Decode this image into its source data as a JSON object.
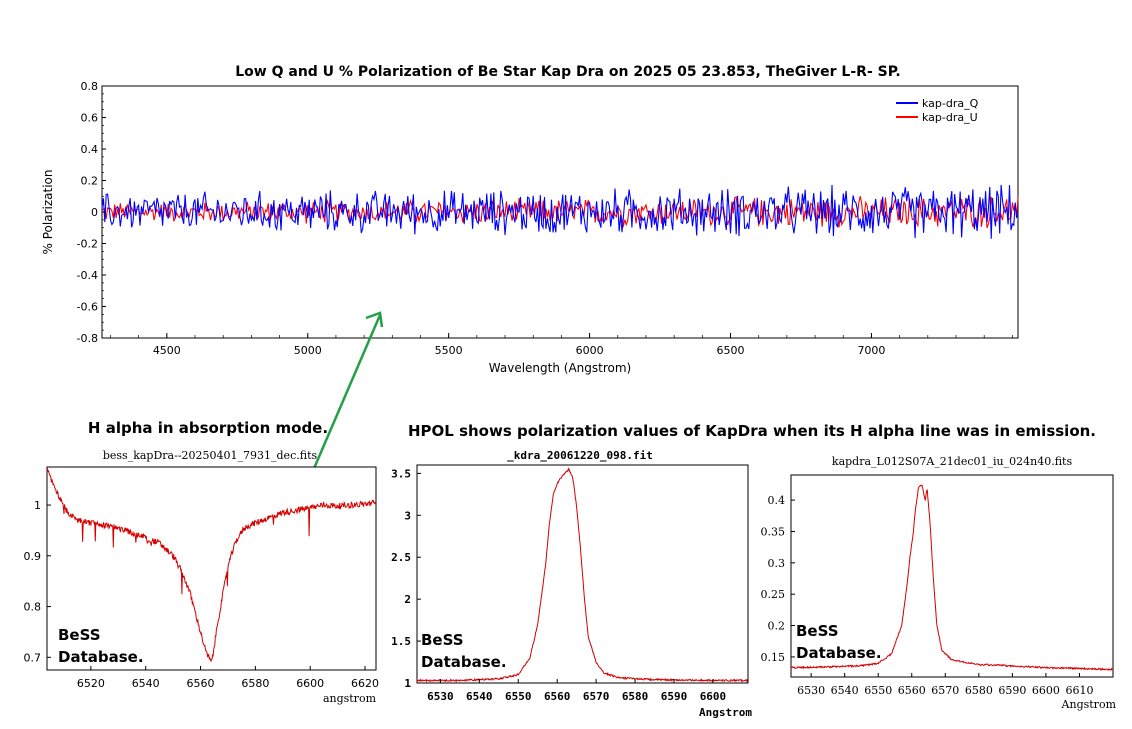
{
  "chart_data": [
    {
      "type": "line",
      "title": "Low Q and U % Polarization of Be Star Kap Dra on 2025 05 23.853, TheGiver  L-R- SP.",
      "xlabel": "Wavelength (Angstrom)",
      "ylabel": "% Polarization",
      "xlim": [
        4270,
        7520
      ],
      "ylim": [
        -0.8,
        0.8
      ],
      "xticks": [
        "4500",
        "5000",
        "5500",
        "6000",
        "6500",
        "7000"
      ],
      "yticks": [
        "0.8",
        "0.6",
        "0.4",
        "0.2",
        "0",
        "-0.2",
        "-0.4",
        "-0.6",
        "-0.8"
      ],
      "legend_position": "top-right",
      "series": [
        {
          "name": "kap-dra_Q",
          "color": "#0000ff",
          "noise_base": 0.1,
          "noise_growth": 0.04
        },
        {
          "name": "kap-dra_U",
          "color": "#ff0000",
          "noise_base": 0.05,
          "noise_growth": 0.035
        }
      ]
    },
    {
      "type": "line",
      "title": "bess_kapDra--20250401_7931_dec.fits",
      "xlabel": "angstrom",
      "ylabel": "",
      "xlim": [
        6504,
        6624
      ],
      "ylim": [
        0.675,
        1.075
      ],
      "xticks": [
        "6520",
        "6540",
        "6560",
        "6580",
        "6600",
        "6620"
      ],
      "yticks": [
        "1",
        "0.9",
        "0.8",
        "0.7"
      ],
      "line_color": "#d40000",
      "points": [
        [
          6504,
          1.07
        ],
        [
          6507,
          1.03
        ],
        [
          6511,
          0.99
        ],
        [
          6515,
          0.97
        ],
        [
          6520,
          0.965
        ],
        [
          6525,
          0.96
        ],
        [
          6530,
          0.955
        ],
        [
          6535,
          0.945
        ],
        [
          6540,
          0.935
        ],
        [
          6545,
          0.925
        ],
        [
          6550,
          0.9
        ],
        [
          6553,
          0.87
        ],
        [
          6556,
          0.83
        ],
        [
          6558,
          0.79
        ],
        [
          6560,
          0.75
        ],
        [
          6562,
          0.71
        ],
        [
          6563,
          0.7
        ],
        [
          6564,
          0.69
        ],
        [
          6565,
          0.72
        ],
        [
          6566,
          0.76
        ],
        [
          6568,
          0.82
        ],
        [
          6570,
          0.88
        ],
        [
          6573,
          0.93
        ],
        [
          6576,
          0.955
        ],
        [
          6580,
          0.965
        ],
        [
          6585,
          0.975
        ],
        [
          6590,
          0.985
        ],
        [
          6595,
          0.99
        ],
        [
          6600,
          0.995
        ],
        [
          6605,
          1.0
        ],
        [
          6610,
          0.998
        ],
        [
          6615,
          1.0
        ],
        [
          6620,
          1.002
        ],
        [
          6624,
          1.005
        ]
      ],
      "annotation": "BeSS Database."
    },
    {
      "type": "line",
      "title": "_kdra_20061220_098.fit",
      "xlabel": "Angstrom",
      "ylabel": "",
      "xlim": [
        6524,
        6609
      ],
      "ylim": [
        1,
        3.6
      ],
      "xticks": [
        "6530",
        "6540",
        "6550",
        "6560",
        "6570",
        "6580",
        "6590",
        "6600"
      ],
      "yticks": [
        "3.5",
        "3",
        "2.5",
        "2",
        "1.5",
        "1"
      ],
      "line_color": "#d40000",
      "points": [
        [
          6524,
          1.03
        ],
        [
          6535,
          1.03
        ],
        [
          6545,
          1.05
        ],
        [
          6550,
          1.1
        ],
        [
          6553,
          1.3
        ],
        [
          6555,
          1.7
        ],
        [
          6557,
          2.4
        ],
        [
          6558,
          2.9
        ],
        [
          6559,
          3.25
        ],
        [
          6560,
          3.38
        ],
        [
          6561,
          3.45
        ],
        [
          6562,
          3.5
        ],
        [
          6563,
          3.55
        ],
        [
          6564,
          3.45
        ],
        [
          6565,
          3.1
        ],
        [
          6566,
          2.6
        ],
        [
          6567,
          2.0
        ],
        [
          6568,
          1.55
        ],
        [
          6570,
          1.25
        ],
        [
          6572,
          1.12
        ],
        [
          6576,
          1.06
        ],
        [
          6585,
          1.04
        ],
        [
          6600,
          1.03
        ],
        [
          6609,
          1.03
        ]
      ],
      "annotation": "BeSS Database."
    },
    {
      "type": "line",
      "title": "kapdra_L012S07A_21dec01_iu_024n40.fits",
      "xlabel": "Angstrom",
      "ylabel": "",
      "xlim": [
        6524,
        6620
      ],
      "ylim": [
        0.118,
        0.44
      ],
      "xticks": [
        "6530",
        "6540",
        "6550",
        "6560",
        "6570",
        "6580",
        "6590",
        "6600",
        "6610"
      ],
      "yticks": [
        "0.4",
        "0.35",
        "0.3",
        "0.25",
        "0.2",
        "0.15"
      ],
      "line_color": "#d40000",
      "points": [
        [
          6524,
          0.133
        ],
        [
          6535,
          0.134
        ],
        [
          6545,
          0.136
        ],
        [
          6550,
          0.14
        ],
        [
          6554,
          0.155
        ],
        [
          6557,
          0.2
        ],
        [
          6558.5,
          0.26
        ],
        [
          6559.5,
          0.31
        ],
        [
          6560.5,
          0.35
        ],
        [
          6561,
          0.38
        ],
        [
          6562,
          0.42
        ],
        [
          6563,
          0.425
        ],
        [
          6564,
          0.4
        ],
        [
          6564.6,
          0.418
        ],
        [
          6565.5,
          0.36
        ],
        [
          6566.5,
          0.27
        ],
        [
          6567.5,
          0.2
        ],
        [
          6569,
          0.16
        ],
        [
          6572,
          0.145
        ],
        [
          6580,
          0.138
        ],
        [
          6600,
          0.133
        ],
        [
          6620,
          0.13
        ]
      ],
      "annotation": "BeSS Database."
    }
  ],
  "headings": {
    "absorption": "H alpha in absorption mode.",
    "emission": "HPOL shows polarization values of KapDra when its H alpha line was in emission."
  },
  "annotation_color": "#22a046"
}
